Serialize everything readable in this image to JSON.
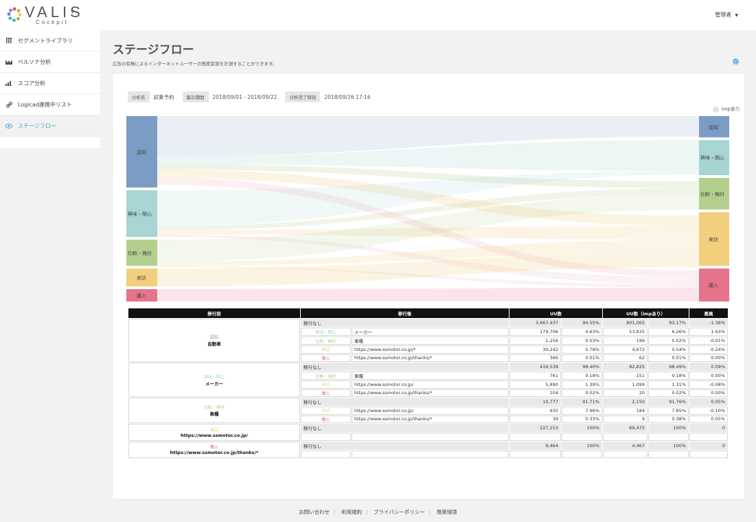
{
  "header": {
    "brand": "VALIS",
    "brand_sub": "Cockpit",
    "user": "管理者"
  },
  "sidebar": {
    "items": [
      {
        "label": "セグメントライブラリ",
        "icon": "library-icon"
      },
      {
        "label": "ペルソナ分析",
        "icon": "persona-icon"
      },
      {
        "label": "スコア分析",
        "icon": "score-icon"
      },
      {
        "label": "Logicad連携中リスト",
        "icon": "link-icon"
      },
      {
        "label": "ステージフロー",
        "icon": "eye-icon"
      }
    ]
  },
  "page": {
    "title": "ステージフロー",
    "description": "広告の有無によるインターネットユーザーの態度変容を計測することができます。"
  },
  "meta": {
    "name_label": "分析名",
    "name_value": "試乗予約",
    "period_label": "集計期間",
    "period_value": "2018/09/01 - 2018/09/22",
    "done_label": "分析完了時刻",
    "done_value": "2018/09/26 17:16"
  },
  "legend": {
    "label": "impあり"
  },
  "colors": {
    "認知": "#7b9cc4",
    "興味・関心": "#a6d5d3",
    "比較・検討": "#b3cf8d",
    "来訪": "#f2cf7d",
    "購入": "#e5738a"
  },
  "sankey": {
    "left_nodes": [
      {
        "label": "認知"
      },
      {
        "label": "興味・関心"
      },
      {
        "label": "比較・検討"
      },
      {
        "label": "来訪"
      },
      {
        "label": "購入"
      }
    ],
    "right_nodes": [
      {
        "label": "認知"
      },
      {
        "label": "興味・関心"
      },
      {
        "label": "比較・検討"
      },
      {
        "label": "来訪"
      },
      {
        "label": "購入"
      }
    ]
  },
  "table": {
    "headers": [
      "移行前",
      "移行後",
      "UU数",
      "UU数（impあり）",
      "差異"
    ],
    "groups": [
      {
        "stage": "認知",
        "value": "自動車",
        "rows": [
          {
            "stage": "",
            "dest": "移行なし",
            "target": "",
            "uu": "3,667,437",
            "uu_pct": "94.55%",
            "imp": "801,065",
            "imp_pct": "93.17%",
            "diff": "-1.38%"
          },
          {
            "stage": "興味・関心",
            "dest": "",
            "target": "メーカー",
            "uu": "179,706",
            "uu_pct": "4.63%",
            "imp": "53,835",
            "imp_pct": "6.26%",
            "diff": "1.63%"
          },
          {
            "stage": "比較・検討",
            "dest": "",
            "target": "車種",
            "uu": "1,256",
            "uu_pct": "0.03%",
            "imp": "196",
            "imp_pct": "0.02%",
            "diff": "-0.01%"
          },
          {
            "stage": "来訪",
            "dest": "",
            "target": "https://www.ssmotor.co.jp/*",
            "uu": "30,242",
            "uu_pct": "0.78%",
            "imp": "4,672",
            "imp_pct": "0.54%",
            "diff": "-0.24%"
          },
          {
            "stage": "購入",
            "dest": "",
            "target": "https://www.ssmotor.co.jp/thanks/*",
            "uu": "366",
            "uu_pct": "0.01%",
            "imp": "62",
            "imp_pct": "0.01%",
            "diff": "0.00%"
          }
        ]
      },
      {
        "stage": "興味・関心",
        "value": "メーカー",
        "rows": [
          {
            "stage": "",
            "dest": "移行なし",
            "target": "",
            "uu": "416,539",
            "uu_pct": "98.40%",
            "imp": "82,825",
            "imp_pct": "98.49%",
            "diff": "0.09%"
          },
          {
            "stage": "比較・検討",
            "dest": "",
            "target": "車種",
            "uu": "761",
            "uu_pct": "0.18%",
            "imp": "151",
            "imp_pct": "0.18%",
            "diff": "0.00%"
          },
          {
            "stage": "来訪",
            "dest": "",
            "target": "https://www.ssmotor.co.jp/",
            "uu": "5,890",
            "uu_pct": "1.39%",
            "imp": "1,099",
            "imp_pct": "1.31%",
            "diff": "-0.08%"
          },
          {
            "stage": "購入",
            "dest": "",
            "target": "https://www.ssmotor.co.jp/thanks/*",
            "uu": "104",
            "uu_pct": "0.02%",
            "imp": "20",
            "imp_pct": "0.02%",
            "diff": "0.00%"
          }
        ]
      },
      {
        "stage": "比較・検討",
        "value": "車種",
        "rows": [
          {
            "stage": "",
            "dest": "移行なし",
            "target": "",
            "uu": "10,777",
            "uu_pct": "91.71%",
            "imp": "2,150",
            "imp_pct": "91.76%",
            "diff": "0.05%"
          },
          {
            "stage": "来訪",
            "dest": "",
            "target": "https://www.ssmotor.co.jp/",
            "uu": "935",
            "uu_pct": "7.96%",
            "imp": "184",
            "imp_pct": "7.85%",
            "diff": "-0.10%"
          },
          {
            "stage": "購入",
            "dest": "",
            "target": "https://www.ssmotor.co.jp/thanks/*",
            "uu": "39",
            "uu_pct": "0.33%",
            "imp": "9",
            "imp_pct": "0.38%",
            "diff": "0.05%"
          }
        ]
      },
      {
        "stage": "来訪",
        "value": "https://www.ssmotor.co.jp/",
        "rows": [
          {
            "stage": "",
            "dest": "移行なし",
            "target": "",
            "uu": "227,153",
            "uu_pct": "100%",
            "imp": "69,475",
            "imp_pct": "100%",
            "diff": "0"
          },
          {
            "stage": "",
            "dest": "",
            "target": "",
            "uu": "",
            "uu_pct": "",
            "imp": "",
            "imp_pct": "",
            "diff": ""
          }
        ]
      },
      {
        "stage": "購入",
        "value": "https://www.ssmotor.co.jp/thanks/*",
        "rows": [
          {
            "stage": "",
            "dest": "移行なし",
            "target": "",
            "uu": "9,464",
            "uu_pct": "100%",
            "imp": "4,467",
            "imp_pct": "100%",
            "diff": "0"
          },
          {
            "stage": "",
            "dest": "",
            "target": "",
            "uu": "",
            "uu_pct": "",
            "imp": "",
            "imp_pct": "",
            "diff": ""
          }
        ]
      }
    ]
  },
  "footer": {
    "links": [
      "お問い合わせ",
      "利用規約",
      "プライバシーポリシー",
      "推奨環境"
    ]
  }
}
